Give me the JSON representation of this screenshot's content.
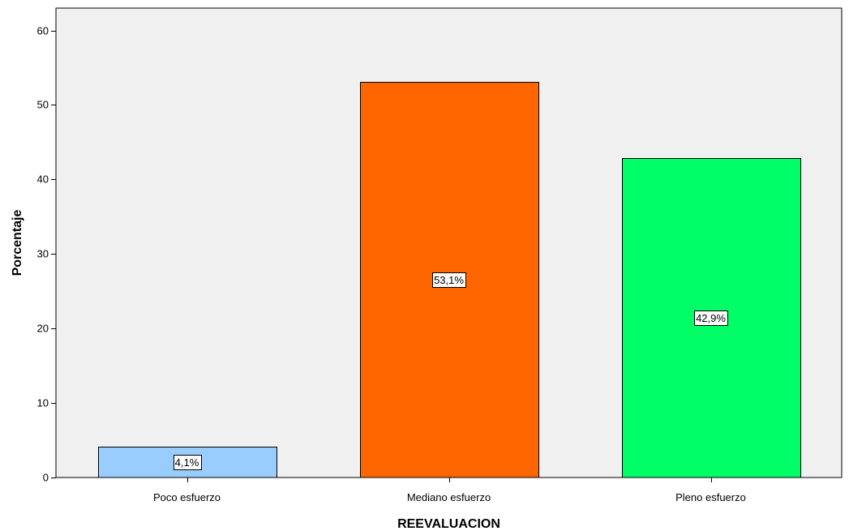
{
  "chart_data": {
    "type": "bar",
    "title": "",
    "xlabel": "REEVALUACION",
    "ylabel": "Porcentaje",
    "categories": [
      "Poco esfuerzo",
      "Mediano esfuerzo",
      "Pleno esfuerzo"
    ],
    "values": [
      4.1,
      53.1,
      42.9
    ],
    "data_labels": [
      "4,1%",
      "53,1%",
      "42,9%"
    ],
    "colors": [
      "#99ccff",
      "#ff6600",
      "#00ff66"
    ],
    "plot_background": "#f0f0f0",
    "ylim": [
      0,
      63
    ],
    "yticks": [
      0,
      10,
      20,
      30,
      40,
      50,
      60
    ],
    "ytick_labels": [
      "0",
      "10",
      "20",
      "30",
      "40",
      "50",
      "60"
    ],
    "grid": false,
    "legend": "none"
  }
}
